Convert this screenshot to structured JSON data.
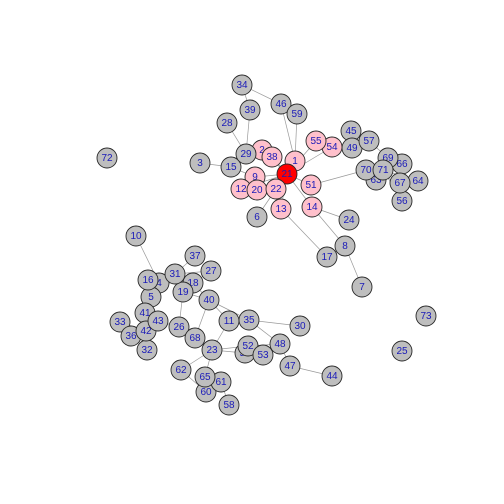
{
  "colors": {
    "default": "#bebebe",
    "neighbor": "#ffc0cb",
    "focus": "#ff0000",
    "label": "#1a1ab8",
    "edge": "#9a9a9a"
  },
  "nodes": [
    {
      "id": "1",
      "group": "neighbor"
    },
    {
      "id": "2",
      "group": "neighbor"
    },
    {
      "id": "3",
      "group": "default"
    },
    {
      "id": "4",
      "group": "default"
    },
    {
      "id": "5",
      "group": "default"
    },
    {
      "id": "6",
      "group": "default"
    },
    {
      "id": "7",
      "group": "default"
    },
    {
      "id": "8",
      "group": "default"
    },
    {
      "id": "9",
      "group": "neighbor"
    },
    {
      "id": "10",
      "group": "default"
    },
    {
      "id": "11",
      "group": "default"
    },
    {
      "id": "12",
      "group": "neighbor"
    },
    {
      "id": "13",
      "group": "neighbor"
    },
    {
      "id": "14",
      "group": "neighbor"
    },
    {
      "id": "15",
      "group": "default"
    },
    {
      "id": "16",
      "group": "default"
    },
    {
      "id": "17",
      "group": "default"
    },
    {
      "id": "18",
      "group": "default"
    },
    {
      "id": "19",
      "group": "default"
    },
    {
      "id": "20",
      "group": "neighbor"
    },
    {
      "id": "21",
      "group": "focus"
    },
    {
      "id": "22",
      "group": "neighbor"
    },
    {
      "id": "23",
      "group": "default"
    },
    {
      "id": "24",
      "group": "default"
    },
    {
      "id": "25",
      "group": "default"
    },
    {
      "id": "26",
      "group": "default"
    },
    {
      "id": "27",
      "group": "default"
    },
    {
      "id": "28",
      "group": "default"
    },
    {
      "id": "29",
      "group": "default"
    },
    {
      "id": "30",
      "group": "default"
    },
    {
      "id": "31",
      "group": "default"
    },
    {
      "id": "32",
      "group": "default"
    },
    {
      "id": "33",
      "group": "default"
    },
    {
      "id": "34",
      "group": "default"
    },
    {
      "id": "35",
      "group": "default"
    },
    {
      "id": "36",
      "group": "default"
    },
    {
      "id": "37",
      "group": "default"
    },
    {
      "id": "38",
      "group": "neighbor"
    },
    {
      "id": "39",
      "group": "default"
    },
    {
      "id": "40",
      "group": "default"
    },
    {
      "id": "41",
      "group": "default"
    },
    {
      "id": "42",
      "group": "default"
    },
    {
      "id": "43",
      "group": "default"
    },
    {
      "id": "44",
      "group": "default"
    },
    {
      "id": "45",
      "group": "default"
    },
    {
      "id": "46",
      "group": "default"
    },
    {
      "id": "47",
      "group": "default"
    },
    {
      "id": "48",
      "group": "default"
    },
    {
      "id": "49",
      "group": "default"
    },
    {
      "id": "50",
      "group": "default"
    },
    {
      "id": "51",
      "group": "neighbor"
    },
    {
      "id": "52",
      "group": "default"
    },
    {
      "id": "53",
      "group": "default"
    },
    {
      "id": "54",
      "group": "neighbor"
    },
    {
      "id": "55",
      "group": "neighbor"
    },
    {
      "id": "56",
      "group": "default"
    },
    {
      "id": "57",
      "group": "default"
    },
    {
      "id": "58",
      "group": "default"
    },
    {
      "id": "59",
      "group": "default"
    },
    {
      "id": "60",
      "group": "default"
    },
    {
      "id": "61",
      "group": "default"
    },
    {
      "id": "62",
      "group": "default"
    },
    {
      "id": "63",
      "group": "default"
    },
    {
      "id": "64",
      "group": "default"
    },
    {
      "id": "65",
      "group": "default"
    },
    {
      "id": "66",
      "group": "default"
    },
    {
      "id": "67",
      "group": "default"
    },
    {
      "id": "68",
      "group": "default"
    },
    {
      "id": "69",
      "group": "default"
    },
    {
      "id": "70",
      "group": "default"
    },
    {
      "id": "71",
      "group": "default"
    },
    {
      "id": "72",
      "group": "default"
    },
    {
      "id": "73",
      "group": "default"
    }
  ],
  "edges": [
    [
      "21",
      "1"
    ],
    [
      "21",
      "2"
    ],
    [
      "21",
      "9"
    ],
    [
      "21",
      "12"
    ],
    [
      "21",
      "13"
    ],
    [
      "21",
      "14"
    ],
    [
      "21",
      "20"
    ],
    [
      "21",
      "22"
    ],
    [
      "21",
      "38"
    ],
    [
      "21",
      "51"
    ],
    [
      "21",
      "54"
    ],
    [
      "21",
      "55"
    ],
    [
      "1",
      "59"
    ],
    [
      "1",
      "46"
    ],
    [
      "46",
      "34"
    ],
    [
      "46",
      "59"
    ],
    [
      "39",
      "34"
    ],
    [
      "39",
      "29"
    ],
    [
      "28",
      "29"
    ],
    [
      "29",
      "2"
    ],
    [
      "3",
      "15"
    ],
    [
      "15",
      "9"
    ],
    [
      "15",
      "2"
    ],
    [
      "6",
      "22"
    ],
    [
      "13",
      "17"
    ],
    [
      "17",
      "8"
    ],
    [
      "8",
      "7"
    ],
    [
      "8",
      "14"
    ],
    [
      "14",
      "24"
    ],
    [
      "51",
      "70"
    ],
    [
      "54",
      "49"
    ],
    [
      "49",
      "45"
    ],
    [
      "49",
      "57"
    ],
    [
      "57",
      "69"
    ],
    [
      "69",
      "66"
    ],
    [
      "66",
      "71"
    ],
    [
      "71",
      "64"
    ],
    [
      "71",
      "56"
    ],
    [
      "71",
      "63"
    ],
    [
      "70",
      "67"
    ],
    [
      "67",
      "64"
    ],
    [
      "55",
      "54"
    ],
    [
      "10",
      "4"
    ],
    [
      "4",
      "5"
    ],
    [
      "4",
      "16"
    ],
    [
      "4",
      "18"
    ],
    [
      "16",
      "31"
    ],
    [
      "31",
      "37"
    ],
    [
      "31",
      "27"
    ],
    [
      "31",
      "19"
    ],
    [
      "18",
      "40"
    ],
    [
      "18",
      "27"
    ],
    [
      "19",
      "40"
    ],
    [
      "40",
      "11"
    ],
    [
      "40",
      "35"
    ],
    [
      "40",
      "68"
    ],
    [
      "5",
      "41"
    ],
    [
      "41",
      "42"
    ],
    [
      "41",
      "43"
    ],
    [
      "42",
      "33"
    ],
    [
      "42",
      "36"
    ],
    [
      "42",
      "32"
    ],
    [
      "43",
      "26"
    ],
    [
      "26",
      "68"
    ],
    [
      "26",
      "19"
    ],
    [
      "68",
      "23"
    ],
    [
      "23",
      "11"
    ],
    [
      "23",
      "50"
    ],
    [
      "23",
      "52"
    ],
    [
      "23",
      "65"
    ],
    [
      "23",
      "62"
    ],
    [
      "11",
      "35"
    ],
    [
      "35",
      "30"
    ],
    [
      "35",
      "48"
    ],
    [
      "52",
      "53"
    ],
    [
      "52",
      "48"
    ],
    [
      "50",
      "53"
    ],
    [
      "48",
      "47"
    ],
    [
      "47",
      "44"
    ],
    [
      "65",
      "60"
    ],
    [
      "65",
      "61"
    ],
    [
      "61",
      "58"
    ],
    [
      "62",
      "60"
    ],
    [
      "32",
      "43"
    ]
  ]
}
